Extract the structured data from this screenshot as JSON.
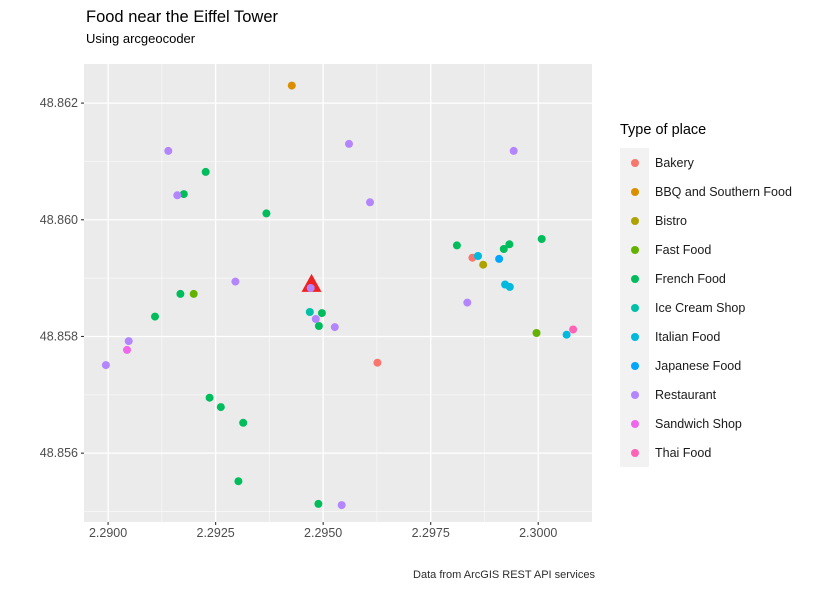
{
  "chart_data": {
    "type": "scatter",
    "title": "Food near the Eiffel Tower",
    "subtitle": "Using arcgeocoder",
    "caption": "Data from ArcGIS REST API services",
    "legend_title": "Type of place",
    "legend_position": "right",
    "grid": "on",
    "panel_bg": "#EBEBEB",
    "grid_color": "#FFFFFF",
    "legend_key_bg": "#F2F2F2",
    "axis_text_color": "#4D4D4D",
    "tick_mark_color": "#333333",
    "xlim": [
      2.28944,
      2.30125
    ],
    "ylim": [
      48.85482,
      48.86267
    ],
    "x_major_ticks": [
      2.29,
      2.2925,
      2.295,
      2.2975,
      2.3
    ],
    "x_tick_labels": [
      "2.2900",
      "2.2925",
      "2.2950",
      "2.2975",
      "2.3000"
    ],
    "x_minor_ticks": [
      2.29125,
      2.29375,
      2.29625,
      2.29875
    ],
    "y_major_ticks": [
      48.856,
      48.858,
      48.86,
      48.862
    ],
    "y_tick_labels": [
      "48.856",
      "48.858",
      "48.860",
      "48.862"
    ],
    "y_minor_ticks": [
      48.855,
      48.857,
      48.859,
      48.861
    ],
    "xlabel": "",
    "ylabel": "",
    "marker": {
      "label": "eiffel-tower-location",
      "shape": "triangle",
      "color": "#EE2222",
      "x": 2.29473,
      "y": 48.85891
    },
    "series": [
      {
        "name": "Bakery",
        "color": "#F8766D",
        "points": [
          [
            2.29847,
            48.85935
          ],
          [
            2.29626,
            48.85755
          ]
        ]
      },
      {
        "name": "BBQ and Southern Food",
        "color": "#DB8E00",
        "points": [
          [
            2.29427,
            48.8623
          ]
        ]
      },
      {
        "name": "Bistro",
        "color": "#AEA200",
        "points": [
          [
            2.29872,
            48.85923
          ]
        ]
      },
      {
        "name": "Fast Food",
        "color": "#64B200",
        "points": [
          [
            2.29199,
            48.85873
          ],
          [
            2.29996,
            48.85806
          ]
        ]
      },
      {
        "name": "French Food",
        "color": "#00BD5C",
        "points": [
          [
            2.29176,
            48.86044
          ],
          [
            2.29227,
            48.86082
          ],
          [
            2.29368,
            48.86011
          ],
          [
            2.29109,
            48.85834
          ],
          [
            2.29168,
            48.85873
          ],
          [
            2.29236,
            48.85695
          ],
          [
            2.29262,
            48.85679
          ],
          [
            2.29314,
            48.85652
          ],
          [
            2.29303,
            48.85552
          ],
          [
            2.29489,
            48.85513
          ],
          [
            2.29811,
            48.85956
          ],
          [
            2.2992,
            48.8595
          ],
          [
            2.29933,
            48.85958
          ],
          [
            2.30008,
            48.85967
          ],
          [
            2.29497,
            48.8584
          ],
          [
            2.2949,
            48.85818
          ]
        ]
      },
      {
        "name": "Ice Cream Shop",
        "color": "#00C1A7",
        "points": [
          [
            2.29469,
            48.85842
          ]
        ]
      },
      {
        "name": "Italian Food",
        "color": "#00BADE",
        "points": [
          [
            2.2986,
            48.85938
          ],
          [
            2.29923,
            48.85889
          ],
          [
            2.29934,
            48.85885
          ],
          [
            2.30066,
            48.85803
          ]
        ]
      },
      {
        "name": "Japanese Food",
        "color": "#00A6FF",
        "points": [
          [
            2.29909,
            48.85933
          ]
        ]
      },
      {
        "name": "Restaurant",
        "color": "#B385FF",
        "points": [
          [
            2.2914,
            48.86118
          ],
          [
            2.29161,
            48.86042
          ],
          [
            2.2956,
            48.8613
          ],
          [
            2.29943,
            48.86118
          ],
          [
            2.29609,
            48.8603
          ],
          [
            2.29296,
            48.85894
          ],
          [
            2.29471,
            48.85883
          ],
          [
            2.29483,
            48.8583
          ],
          [
            2.29527,
            48.85816
          ],
          [
            2.29048,
            48.85792
          ],
          [
            2.28995,
            48.85751
          ],
          [
            2.29543,
            48.85511
          ],
          [
            2.29835,
            48.85858
          ]
        ]
      },
      {
        "name": "Sandwich Shop",
        "color": "#EF67EB",
        "points": [
          [
            2.29044,
            48.85777
          ]
        ]
      },
      {
        "name": "Thai Food",
        "color": "#FF63B6",
        "points": [
          [
            2.30081,
            48.85812
          ]
        ]
      }
    ]
  }
}
